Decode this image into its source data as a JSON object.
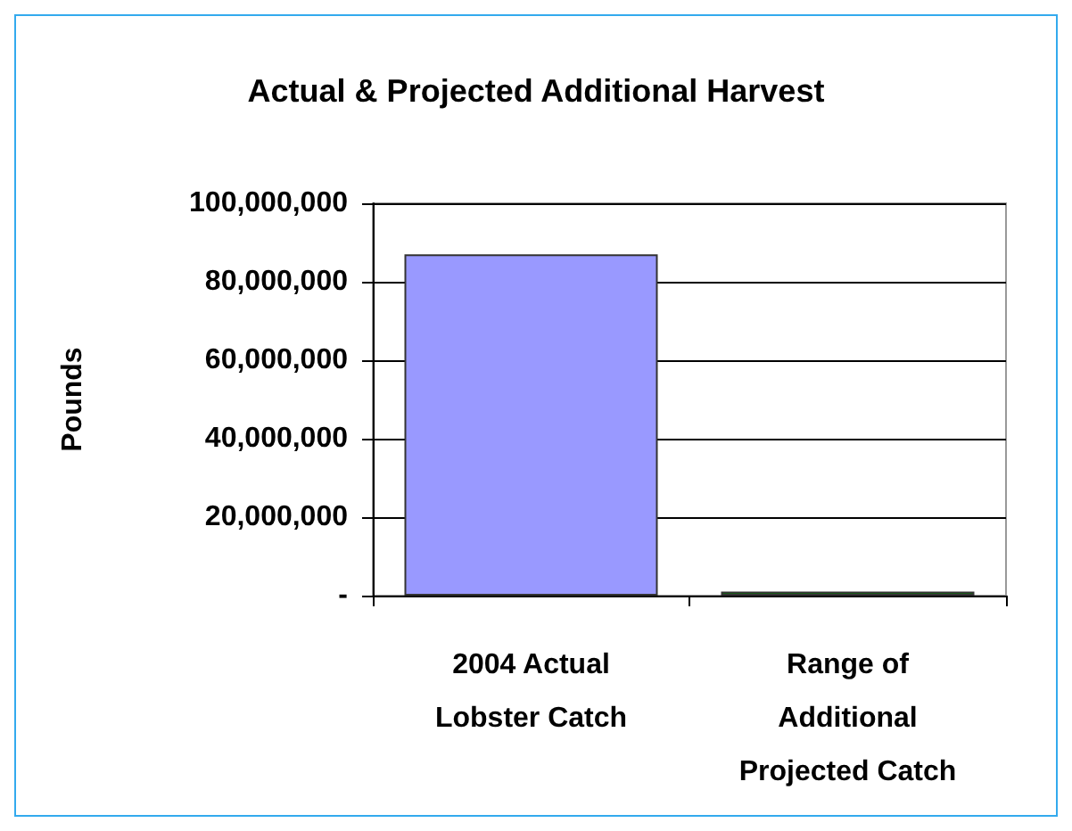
{
  "chart_data": {
    "type": "bar",
    "title": "Actual & Projected Additional Harvest",
    "ylabel": "Pounds",
    "categories": [
      "2004 Actual\nLobster Catch",
      "Range of\nAdditional\nProjected Catch"
    ],
    "values": [
      87000000,
      1000000
    ],
    "colors": [
      "#9999ff",
      "#008000"
    ],
    "ylim": [
      0,
      100000000
    ],
    "yticks": [
      {
        "value": 0,
        "label": "-"
      },
      {
        "value": 20000000,
        "label": "20,000,000"
      },
      {
        "value": 40000000,
        "label": "40,000,000"
      },
      {
        "value": 60000000,
        "label": "60,000,000"
      },
      {
        "value": 80000000,
        "label": "80,000,000"
      },
      {
        "value": 100000000,
        "label": "100,000,000"
      }
    ],
    "grid": "y"
  }
}
